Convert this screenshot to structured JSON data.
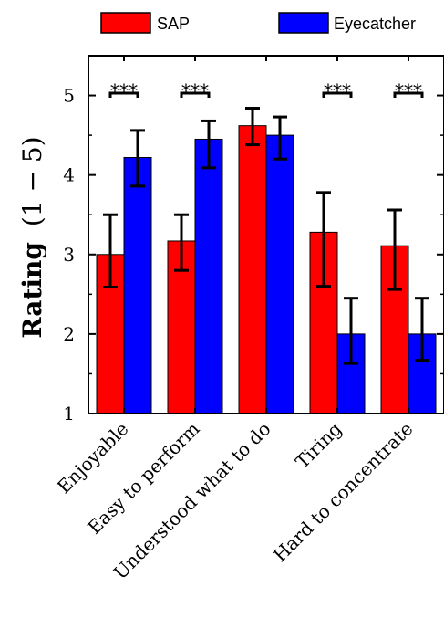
{
  "chart_data": {
    "type": "bar",
    "categories": [
      "Enjoyable",
      "Easy to perform",
      "Understood what to do",
      "Tiring",
      "Hard to concentrate"
    ],
    "series": [
      {
        "name": "SAP",
        "color": "#ff0000",
        "values": [
          3.0,
          3.17,
          4.62,
          3.28,
          3.11
        ],
        "err_low": [
          2.59,
          2.8,
          4.38,
          2.6,
          2.56
        ],
        "err_high": [
          3.5,
          3.5,
          4.84,
          3.78,
          3.56
        ]
      },
      {
        "name": "Eyecatcher",
        "color": "#0000ff",
        "values": [
          4.22,
          4.45,
          4.5,
          2.0,
          2.0
        ],
        "err_low": [
          3.86,
          4.09,
          4.2,
          1.63,
          1.67
        ],
        "err_high": [
          4.56,
          4.68,
          4.73,
          2.45,
          2.45
        ]
      }
    ],
    "significance": [
      "***",
      "***",
      "",
      "***",
      "***"
    ],
    "ylabel_bold": "Rating",
    "ylabel_rest": "(1 − 5)",
    "ylim": [
      1,
      5.5
    ],
    "yticks": [
      "1",
      "2",
      "3",
      "4",
      "5"
    ],
    "legend_position": "top",
    "grid": false
  }
}
